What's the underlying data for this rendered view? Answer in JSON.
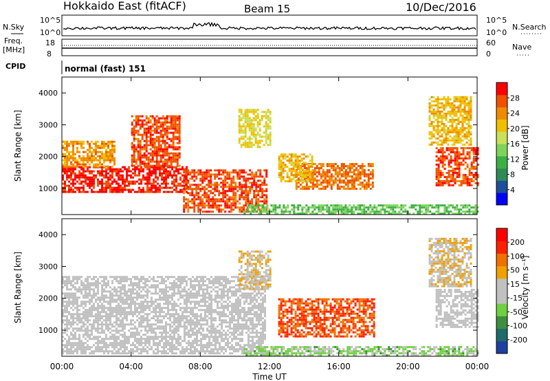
{
  "header": {
    "title": "Hokkaido East (fitACF)",
    "beam": "Beam 15",
    "date": "10/Dec/2016"
  },
  "top_panel": {
    "nsky_label": "N.Sky",
    "nsky_ticks": [
      "10^5",
      "10^0"
    ],
    "nsearch_label": "N.Search",
    "nsearch_ticks": [
      "10^5",
      "10^0"
    ],
    "freq_label": "Freq.",
    "freq_unit": "[MHz]",
    "freq_ticks": [
      "18",
      "8"
    ],
    "nave_label": "Nave",
    "nave_ticks": [
      "60",
      "0"
    ],
    "cpid_label": "CPID",
    "cpid_value": "normal (fast) 151"
  },
  "colors": {
    "power_scale": [
      "#0000ff",
      "#1f4e9a",
      "#2e8b57",
      "#3cb043",
      "#7fd35a",
      "#c8e05a",
      "#f0c000",
      "#f08a00",
      "#f05000",
      "#ff0000"
    ],
    "velocity_scale": [
      "#1f3fa0",
      "#1f6a6a",
      "#3d8f3d",
      "#6fd13f",
      "#c0c0c0",
      "#c0c0c0",
      "#f0a000",
      "#f07000",
      "#ff2000",
      "#ff0000"
    ]
  },
  "chart_data": [
    {
      "type": "heatmap",
      "name": "power",
      "xlabel": "Time UT",
      "ylabel": "Slant Range [km]",
      "x_ticks": [
        "00:00",
        "04:00",
        "08:00",
        "12:00",
        "16:00",
        "20:00",
        "00:00"
      ],
      "y_ticks": [
        "1000",
        "2000",
        "3000",
        "4000"
      ],
      "xlim": [
        0,
        24
      ],
      "ylim": [
        180,
        4500
      ],
      "colorbar_label": "Power [dB]",
      "colorbar_ticks": [
        "28",
        "24",
        "20",
        "16",
        "12",
        "8",
        "4"
      ],
      "colorbar_range": [
        0,
        30
      ],
      "regions": [
        {
          "t0": 0.0,
          "t1": 7.2,
          "r0": 900,
          "r1": 1700,
          "value": 28
        },
        {
          "t0": 0.0,
          "t1": 3.0,
          "r0": 1700,
          "r1": 2500,
          "value": 22
        },
        {
          "t0": 4.0,
          "t1": 6.8,
          "r0": 1700,
          "r1": 3300,
          "value": 26
        },
        {
          "t0": 7.0,
          "t1": 11.8,
          "r0": 300,
          "r1": 1600,
          "value": 26
        },
        {
          "t0": 13.5,
          "t1": 18.0,
          "r0": 1000,
          "r1": 1800,
          "value": 24
        },
        {
          "t0": 12.5,
          "t1": 14.5,
          "r0": 1200,
          "r1": 2100,
          "value": 20
        },
        {
          "t0": 10.2,
          "t1": 12.0,
          "r0": 2300,
          "r1": 3500,
          "value": 18
        },
        {
          "t0": 21.6,
          "t1": 24.0,
          "r0": 1100,
          "r1": 2300,
          "value": 26
        },
        {
          "t0": 21.2,
          "t1": 23.6,
          "r0": 2400,
          "r1": 3900,
          "value": 20
        },
        {
          "t0": 10.5,
          "t1": 24.0,
          "r0": 200,
          "r1": 500,
          "value": 12
        }
      ]
    },
    {
      "type": "heatmap",
      "name": "velocity",
      "xlabel": "Time UT",
      "ylabel": "Slant Range [km]",
      "x_ticks": [
        "00:00",
        "04:00",
        "08:00",
        "12:00",
        "16:00",
        "20:00",
        "00:00"
      ],
      "y_ticks": [
        "1000",
        "2000",
        "3000",
        "4000"
      ],
      "xlim": [
        0,
        24
      ],
      "ylim": [
        180,
        4500
      ],
      "colorbar_label": "Velocity [m s⁻¹]",
      "colorbar_ticks": [
        "200",
        "100",
        "50",
        "15",
        "-15",
        "-50",
        "-100",
        "-200"
      ],
      "colorbar_range": [
        -250,
        250
      ],
      "regions": [
        {
          "t0": 0.0,
          "t1": 11.8,
          "r0": 300,
          "r1": 2700,
          "value": 0
        },
        {
          "t0": 12.5,
          "t1": 18.0,
          "r0": 800,
          "r1": 2000,
          "value": 150
        },
        {
          "t0": 10.2,
          "t1": 12.0,
          "r0": 2300,
          "r1": 3500,
          "value": 40
        },
        {
          "t0": 21.6,
          "t1": 24.0,
          "r0": 1100,
          "r1": 2300,
          "value": 0
        },
        {
          "t0": 21.2,
          "t1": 23.6,
          "r0": 2400,
          "r1": 3900,
          "value": 40
        },
        {
          "t0": 10.5,
          "t1": 24.0,
          "r0": 200,
          "r1": 500,
          "value": -60
        }
      ]
    }
  ]
}
